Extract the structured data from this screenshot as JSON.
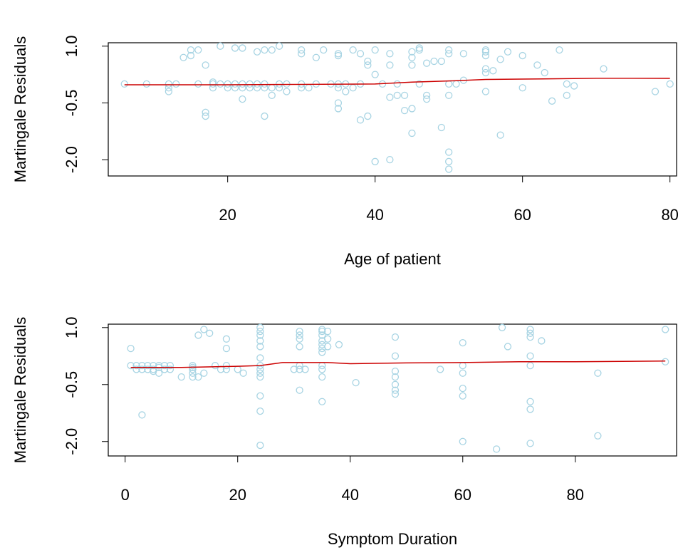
{
  "chart_data": [
    {
      "type": "scatter",
      "x_label": "Age of patient",
      "y_label": "Martingale Residuals",
      "color": "#a8d4e3",
      "xlim": [
        3.8,
        80.9
      ],
      "ylim": [
        -2.43,
        1.09
      ],
      "xticks": [
        20,
        40,
        60,
        80
      ],
      "yticks": [
        {
          "value": 1,
          "label": "1.0"
        },
        {
          "value": -0.5,
          "label": "-0.5"
        },
        {
          "value": -2,
          "label": "-2.0"
        }
      ],
      "x": [
        6,
        9,
        12,
        12,
        12,
        13,
        14,
        15,
        15,
        16,
        16,
        17,
        17,
        17,
        18,
        18,
        18,
        19,
        19,
        20,
        20,
        21,
        21,
        21,
        22,
        22,
        22,
        22,
        23,
        23,
        24,
        24,
        24,
        25,
        25,
        25,
        25,
        26,
        26,
        26,
        27,
        27,
        27,
        28,
        28,
        30,
        30,
        30,
        30,
        31,
        32,
        32,
        33,
        34,
        35,
        35,
        35,
        35,
        35,
        35,
        36,
        36,
        37,
        37,
        38,
        38,
        38,
        39,
        39,
        39,
        40,
        40,
        40,
        41,
        42,
        42,
        42,
        42,
        43,
        43,
        44,
        44,
        45,
        45,
        45,
        45,
        45,
        46,
        46,
        46,
        47,
        47,
        47,
        48,
        49,
        49,
        50,
        50,
        50,
        50,
        50,
        50,
        50,
        51,
        52,
        52,
        55,
        55,
        55,
        55,
        55,
        55,
        56,
        57,
        57,
        58,
        60,
        60,
        62,
        63,
        64,
        65,
        66,
        66,
        67,
        71,
        78,
        80
      ],
      "values": [
        0.0,
        0.0,
        -0.1,
        -0.2,
        0.0,
        0.0,
        0.7,
        0.9,
        0.75,
        0.9,
        0.0,
        -0.75,
        -0.85,
        0.5,
        0.0,
        -0.1,
        0.05,
        1.0,
        0.0,
        0.0,
        -0.1,
        0.0,
        -0.1,
        0.95,
        0.95,
        -0.1,
        0.0,
        -0.4,
        0.0,
        -0.1,
        0.0,
        0.85,
        -0.1,
        0.9,
        -0.1,
        -0.85,
        0.0,
        0.9,
        -0.3,
        -0.1,
        0.0,
        1.0,
        -0.1,
        0.0,
        -0.2,
        0.9,
        0.8,
        0.0,
        -0.1,
        -0.1,
        0.7,
        0.0,
        0.9,
        0.0,
        0.75,
        0.8,
        -0.5,
        -0.65,
        0.0,
        -0.1,
        0.0,
        -0.2,
        0.9,
        -0.1,
        0.8,
        -0.95,
        0.0,
        0.6,
        0.5,
        -0.85,
        0.9,
        0.25,
        -2.05,
        0.0,
        0.5,
        0.8,
        -2.0,
        -0.35,
        0.0,
        -0.3,
        -0.3,
        -0.7,
        0.85,
        0.7,
        0.5,
        -0.65,
        -1.3,
        0.95,
        0.9,
        0.0,
        0.55,
        -0.3,
        -0.4,
        0.6,
        0.6,
        -1.15,
        0.9,
        0.8,
        0.0,
        -0.3,
        -1.8,
        -2.05,
        -2.25,
        0.0,
        0.8,
        0.1,
        0.9,
        0.85,
        0.75,
        0.4,
        0.3,
        -0.2,
        0.35,
        0.65,
        -1.35,
        0.85,
        0.75,
        -0.1,
        0.5,
        0.3,
        -0.45,
        0.9,
        0.0,
        -0.3,
        -0.05,
        0.4,
        -0.2,
        0.0
      ],
      "line": {
        "color": "#cc0000",
        "x": [
          6,
          20,
          30,
          40,
          45,
          50,
          55,
          60,
          70,
          80
        ],
        "values": [
          -0.02,
          -0.02,
          -0.01,
          0.0,
          0.05,
          0.08,
          0.12,
          0.13,
          0.15,
          0.15
        ]
      }
    },
    {
      "type": "scatter",
      "x_label": "Symptom Duration",
      "y_label": "Martingale Residuals",
      "color": "#a8d4e3",
      "xlim": [
        -3,
        98
      ],
      "ylim": [
        -2.38,
        1.09
      ],
      "xticks": [
        0,
        20,
        40,
        60,
        80
      ],
      "yticks": [
        {
          "value": 1,
          "label": "1.0"
        },
        {
          "value": -0.5,
          "label": "-0.5"
        },
        {
          "value": -2,
          "label": "-2.0"
        }
      ],
      "x": [
        1,
        1,
        2,
        2,
        3,
        3,
        3,
        4,
        4,
        5,
        5,
        5,
        6,
        6,
        6,
        7,
        7,
        8,
        8,
        10,
        12,
        12,
        12,
        12,
        12,
        13,
        13,
        14,
        14,
        15,
        16,
        17,
        18,
        18,
        18,
        18,
        20,
        21,
        24,
        24,
        24,
        24,
        24,
        24,
        24,
        24,
        24,
        24,
        24,
        24,
        24,
        30,
        31,
        31,
        31,
        31,
        31,
        31,
        31,
        32,
        35,
        35,
        35,
        35,
        35,
        35,
        35,
        35,
        35,
        35,
        35,
        36,
        36,
        36,
        38,
        41,
        48,
        48,
        48,
        48,
        48,
        48,
        48,
        56,
        60,
        60,
        60,
        60,
        60,
        60,
        66,
        67,
        68,
        72,
        72,
        72,
        72,
        72,
        72,
        72,
        72,
        74,
        84,
        84,
        96,
        96
      ],
      "values": [
        0.45,
        0.0,
        -0.1,
        0.0,
        -0.1,
        -1.3,
        0.0,
        0.0,
        -0.1,
        0.0,
        -0.1,
        -0.15,
        -0.05,
        0.0,
        -0.2,
        0.0,
        -0.1,
        0.0,
        -0.1,
        -0.3,
        0.0,
        -0.1,
        -0.2,
        -0.3,
        -0.05,
        0.8,
        -0.3,
        0.95,
        -0.2,
        0.85,
        0.0,
        -0.1,
        0.7,
        0.45,
        -0.1,
        0.0,
        -0.1,
        -0.2,
        1.0,
        0.9,
        0.8,
        0.65,
        0.5,
        0.2,
        0.0,
        -0.1,
        -0.2,
        -0.3,
        -0.8,
        -1.2,
        -2.1,
        -0.1,
        0.9,
        0.8,
        0.7,
        0.5,
        0.0,
        -0.1,
        -0.65,
        -0.1,
        0.95,
        0.9,
        0.8,
        0.65,
        0.55,
        0.45,
        0.35,
        0.0,
        -0.1,
        -0.3,
        -0.95,
        0.9,
        0.7,
        0.5,
        0.55,
        -0.45,
        0.75,
        0.25,
        -0.15,
        -0.3,
        -0.5,
        -0.65,
        -0.75,
        -0.1,
        0.6,
        0.0,
        -0.2,
        -0.6,
        -0.8,
        -2.0,
        -2.2,
        1.0,
        0.5,
        0.95,
        0.85,
        0.75,
        0.25,
        0.0,
        -0.95,
        -1.15,
        -2.05,
        0.65,
        -0.2,
        -1.85,
        0.95,
        0.1
      ],
      "line": {
        "color": "#cc0000",
        "x": [
          1,
          10,
          20,
          24,
          28,
          36,
          40,
          50,
          60,
          70,
          80,
          96
        ],
        "values": [
          -0.05,
          -0.05,
          -0.02,
          0.0,
          0.08,
          0.08,
          0.05,
          0.07,
          0.08,
          0.1,
          0.1,
          0.12
        ]
      }
    }
  ]
}
